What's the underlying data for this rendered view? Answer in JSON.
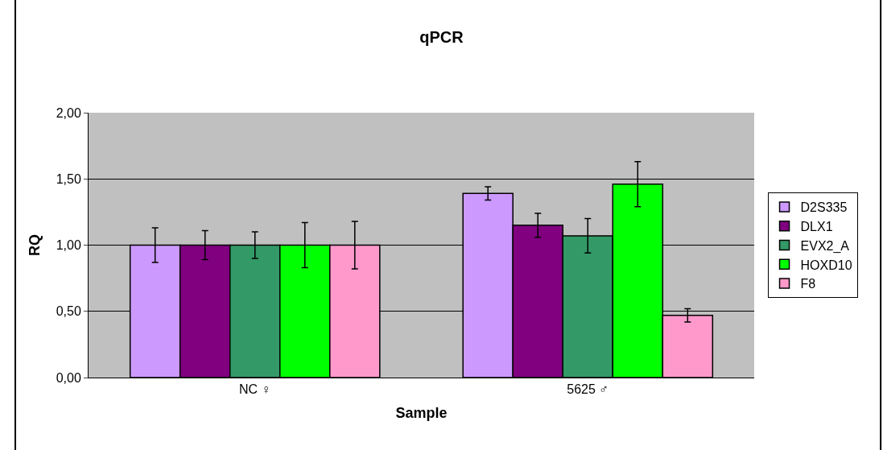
{
  "chart_data": {
    "type": "bar",
    "title": "qPCR",
    "xlabel": "Sample",
    "ylabel": "RQ",
    "categories": [
      "NC ♀",
      "5625 ♂"
    ],
    "series": [
      {
        "name": "D2S335",
        "color": "#cc99ff",
        "values": [
          1.0,
          1.39
        ],
        "errors": [
          0.13,
          0.05
        ]
      },
      {
        "name": "DLX1",
        "color": "#800080",
        "values": [
          1.0,
          1.15
        ],
        "errors": [
          0.11,
          0.09
        ]
      },
      {
        "name": "EVX2_A",
        "color": "#339966",
        "values": [
          1.0,
          1.07
        ],
        "errors": [
          0.1,
          0.13
        ]
      },
      {
        "name": "HOXD10",
        "color": "#00ff00",
        "values": [
          1.0,
          1.46
        ],
        "errors": [
          0.17,
          0.17
        ]
      },
      {
        "name": "F8",
        "color": "#ff99cc",
        "values": [
          1.0,
          0.47
        ],
        "errors": [
          0.18,
          0.05
        ]
      }
    ],
    "ylim": [
      0,
      2
    ],
    "yticks": [
      {
        "value": 0,
        "label": "0,00"
      },
      {
        "value": 0.5,
        "label": "0,50"
      },
      {
        "value": 1,
        "label": "1,00"
      },
      {
        "value": 1.5,
        "label": "1,50"
      },
      {
        "value": 2,
        "label": "2,00"
      }
    ],
    "grid": "y",
    "legend": "right"
  }
}
